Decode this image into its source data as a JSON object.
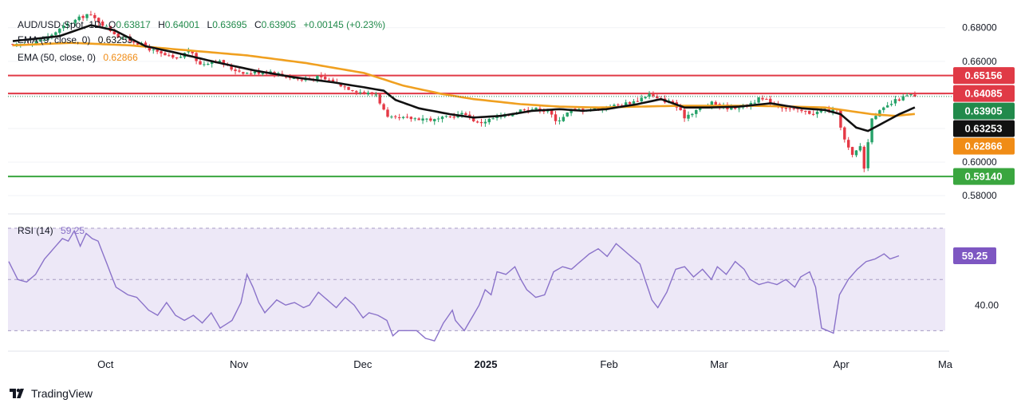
{
  "chart_data": {
    "type": "candlestick",
    "main": {
      "symbol": "AUD/USD",
      "timeframe": "1D",
      "header_symbol": "AUD/USD·Spot, 1D",
      "ohlc": {
        "o_label": "O",
        "o": "0.63817",
        "h_label": "H",
        "h": "0.64001",
        "l_label": "L",
        "l": "0.63695",
        "c_label": "C",
        "c": "0.63905",
        "change": "+0.00145 (+0.23%)"
      },
      "ema9_label": "EMA (9, close, 0)",
      "ema9_value": "0.63253",
      "ema50_label": "EMA (50, close, 0)",
      "ema50_value": "0.62866",
      "y_ticks": [
        "0.68000",
        "0.66000",
        "0.60000",
        "0.58000"
      ],
      "ylim": [
        0.572,
        0.6908
      ],
      "horizontal_levels": [
        {
          "value": 0.65156,
          "label": "0.65156",
          "color": "#e03a46"
        },
        {
          "value": 0.64085,
          "label": "0.64085",
          "color": "#e03a46"
        },
        {
          "value": 0.5914,
          "label": "0.59140",
          "color": "#3aa63f"
        }
      ],
      "value_badges": [
        {
          "value": 0.63905,
          "label": "0.63905",
          "color": "#218a4b"
        },
        {
          "value": 0.63253,
          "label": "0.63253",
          "color": "#111111"
        },
        {
          "value": 0.62866,
          "label": "0.62866",
          "color": "#f08c16"
        }
      ],
      "candle_keypoints": [
        [
          0,
          0.669
        ],
        [
          8,
          0.673
        ],
        [
          14,
          0.682
        ],
        [
          19,
          0.688
        ],
        [
          22,
          0.684
        ],
        [
          27,
          0.675
        ],
        [
          32,
          0.671
        ],
        [
          37,
          0.665
        ],
        [
          42,
          0.661
        ],
        [
          45,
          0.6666
        ],
        [
          48,
          0.658
        ],
        [
          52,
          0.661
        ],
        [
          56,
          0.6555
        ],
        [
          60,
          0.653
        ],
        [
          66,
          0.654
        ],
        [
          70,
          0.651
        ],
        [
          74,
          0.649
        ],
        [
          78,
          0.6505
        ],
        [
          82,
          0.648
        ],
        [
          86,
          0.644
        ],
        [
          90,
          0.641
        ],
        [
          93,
          0.6405
        ],
        [
          96,
          0.626
        ],
        [
          101,
          0.626
        ],
        [
          105,
          0.626
        ],
        [
          108,
          0.625
        ],
        [
          112,
          0.627
        ],
        [
          116,
          0.629
        ],
        [
          119,
          0.623
        ],
        [
          123,
          0.626
        ],
        [
          127,
          0.628
        ],
        [
          131,
          0.632
        ],
        [
          134,
          0.6315
        ],
        [
          137,
          0.631
        ],
        [
          139,
          0.624
        ],
        [
          143,
          0.631
        ],
        [
          147,
          0.6315
        ],
        [
          151,
          0.632
        ],
        [
          155,
          0.634
        ],
        [
          159,
          0.636
        ],
        [
          163,
          0.6405
        ],
        [
          165,
          0.6375
        ],
        [
          169,
          0.6355
        ],
        [
          172,
          0.627
        ],
        [
          175,
          0.631
        ],
        [
          179,
          0.635
        ],
        [
          183,
          0.6325
        ],
        [
          187,
          0.633
        ],
        [
          191,
          0.6375
        ],
        [
          194,
          0.636
        ],
        [
          197,
          0.633
        ],
        [
          201,
          0.6305
        ],
        [
          205,
          0.629
        ],
        [
          208,
          0.631
        ],
        [
          211,
          0.63
        ],
        [
          213,
          0.613
        ],
        [
          215,
          0.6035
        ],
        [
          217,
          0.6095
        ],
        [
          218,
          0.5965
        ],
        [
          220,
          0.627
        ],
        [
          223,
          0.6315
        ],
        [
          226,
          0.6365
        ],
        [
          228,
          0.6385
        ],
        [
          230,
          0.6399
        ],
        [
          231,
          0.63905
        ]
      ],
      "ema9_keypoints": [
        [
          0,
          0.672
        ],
        [
          12,
          0.675
        ],
        [
          20,
          0.6815
        ],
        [
          26,
          0.6785
        ],
        [
          34,
          0.669
        ],
        [
          42,
          0.665
        ],
        [
          52,
          0.6595
        ],
        [
          62,
          0.6545
        ],
        [
          72,
          0.6505
        ],
        [
          82,
          0.6475
        ],
        [
          90,
          0.6445
        ],
        [
          95,
          0.6425
        ],
        [
          98,
          0.637
        ],
        [
          104,
          0.632
        ],
        [
          112,
          0.6285
        ],
        [
          118,
          0.6265
        ],
        [
          125,
          0.6275
        ],
        [
          133,
          0.6305
        ],
        [
          140,
          0.6315
        ],
        [
          146,
          0.6305
        ],
        [
          152,
          0.6315
        ],
        [
          160,
          0.6345
        ],
        [
          166,
          0.6375
        ],
        [
          172,
          0.6325
        ],
        [
          178,
          0.6325
        ],
        [
          186,
          0.633
        ],
        [
          194,
          0.635
        ],
        [
          202,
          0.632
        ],
        [
          208,
          0.631
        ],
        [
          212,
          0.6285
        ],
        [
          216,
          0.6205
        ],
        [
          219,
          0.6185
        ],
        [
          223,
          0.6235
        ],
        [
          227,
          0.6285
        ],
        [
          231,
          0.63253
        ]
      ],
      "ema50_keypoints": [
        [
          0,
          0.6695
        ],
        [
          15,
          0.671
        ],
        [
          30,
          0.6695
        ],
        [
          45,
          0.6665
        ],
        [
          60,
          0.6635
        ],
        [
          75,
          0.659
        ],
        [
          90,
          0.653
        ],
        [
          100,
          0.6455
        ],
        [
          110,
          0.6405
        ],
        [
          118,
          0.6375
        ],
        [
          130,
          0.6345
        ],
        [
          140,
          0.633
        ],
        [
          150,
          0.6325
        ],
        [
          160,
          0.633
        ],
        [
          170,
          0.6335
        ],
        [
          180,
          0.6335
        ],
        [
          190,
          0.6335
        ],
        [
          200,
          0.633
        ],
        [
          208,
          0.6325
        ],
        [
          214,
          0.6305
        ],
        [
          220,
          0.6285
        ],
        [
          226,
          0.6275
        ],
        [
          231,
          0.62866
        ]
      ]
    },
    "rsi": {
      "label": "RSI (14)",
      "value": 59.25,
      "value_label": "59.25",
      "levels": [
        70,
        50,
        30
      ],
      "y_tick": "40.00",
      "ylim": [
        22,
        75
      ],
      "keypoints": [
        [
          0,
          57
        ],
        [
          3,
          50
        ],
        [
          6,
          49
        ],
        [
          9,
          52
        ],
        [
          12,
          58
        ],
        [
          15,
          62
        ],
        [
          18,
          66
        ],
        [
          20,
          65
        ],
        [
          22,
          69
        ],
        [
          24,
          63
        ],
        [
          26,
          68
        ],
        [
          28,
          66
        ],
        [
          30,
          65
        ],
        [
          32,
          59
        ],
        [
          36,
          47
        ],
        [
          40,
          44
        ],
        [
          43,
          43
        ],
        [
          47,
          38
        ],
        [
          50,
          36
        ],
        [
          53,
          41
        ],
        [
          56,
          36
        ],
        [
          59,
          34
        ],
        [
          62,
          36
        ],
        [
          65,
          33
        ],
        [
          68,
          37
        ],
        [
          71,
          31
        ],
        [
          75,
          34
        ],
        [
          78,
          41
        ],
        [
          80,
          52
        ],
        [
          82,
          47
        ],
        [
          84,
          41
        ],
        [
          86,
          37
        ],
        [
          90,
          42
        ],
        [
          93,
          40
        ],
        [
          96,
          41
        ],
        [
          99,
          39
        ],
        [
          101,
          40
        ],
        [
          104,
          45
        ],
        [
          107,
          42
        ],
        [
          110,
          39
        ],
        [
          113,
          43
        ],
        [
          116,
          40
        ],
        [
          119,
          35
        ],
        [
          121,
          37
        ],
        [
          124,
          36
        ],
        [
          127,
          34
        ],
        [
          129,
          28
        ],
        [
          131,
          30
        ],
        [
          134,
          30
        ],
        [
          137,
          30
        ],
        [
          140,
          27
        ],
        [
          143,
          26
        ],
        [
          146,
          33
        ],
        [
          149,
          38
        ],
        [
          150,
          34
        ],
        [
          153,
          30
        ],
        [
          155,
          34
        ],
        [
          158,
          40
        ],
        [
          160,
          46
        ],
        [
          162,
          44
        ],
        [
          164,
          53
        ],
        [
          167,
          52
        ],
        [
          170,
          55
        ],
        [
          172,
          50
        ],
        [
          174,
          46
        ],
        [
          177,
          43
        ],
        [
          180,
          44
        ],
        [
          183,
          53
        ],
        [
          186,
          55
        ],
        [
          189,
          54
        ],
        [
          192,
          57
        ],
        [
          195,
          60
        ],
        [
          198,
          62
        ],
        [
          201,
          59
        ],
        [
          204,
          64
        ],
        [
          207,
          61
        ],
        [
          209,
          59
        ],
        [
          212,
          56
        ],
        [
          214,
          49
        ],
        [
          216,
          42
        ],
        [
          218,
          39
        ],
        [
          221,
          45
        ],
        [
          224,
          54
        ],
        [
          227,
          55
        ],
        [
          230,
          51
        ],
        [
          233,
          54
        ],
        [
          236,
          50
        ],
        [
          238,
          55
        ],
        [
          241,
          52
        ],
        [
          244,
          57
        ],
        [
          247,
          54
        ],
        [
          249,
          50
        ],
        [
          252,
          48
        ],
        [
          255,
          49
        ],
        [
          258,
          48
        ],
        [
          261,
          50
        ],
        [
          264,
          47
        ],
        [
          266,
          51
        ],
        [
          269,
          53
        ],
        [
          271,
          47
        ],
        [
          273,
          31
        ],
        [
          275,
          30
        ],
        [
          277,
          29
        ],
        [
          279,
          44
        ],
        [
          282,
          50
        ],
        [
          285,
          54
        ],
        [
          288,
          57
        ],
        [
          291,
          58
        ],
        [
          294,
          60
        ],
        [
          296,
          58
        ],
        [
          299,
          59.25
        ]
      ]
    },
    "x_axis": {
      "labels": [
        {
          "text": "Oct",
          "fraction": 0.104
        },
        {
          "text": "Nov",
          "fraction": 0.2464
        },
        {
          "text": "Dec",
          "fraction": 0.3786
        },
        {
          "text": "2025",
          "fraction": 0.5098
        },
        {
          "text": "Feb",
          "fraction": 0.6413
        },
        {
          "text": "Mar",
          "fraction": 0.7587
        },
        {
          "text": "Apr",
          "fraction": 0.889
        },
        {
          "text": "Ma",
          "fraction": 1.0
        }
      ]
    }
  },
  "branding": {
    "logo_text": "TradingView"
  },
  "colors": {
    "bull": "#26a269",
    "bear": "#e53946",
    "ema9": "#111111",
    "ema50": "#f0a020",
    "rsi_line": "#8a72c9",
    "rsi_band": "#ede8f7",
    "grid": "#eeeeee",
    "axis_text": "#131722"
  }
}
